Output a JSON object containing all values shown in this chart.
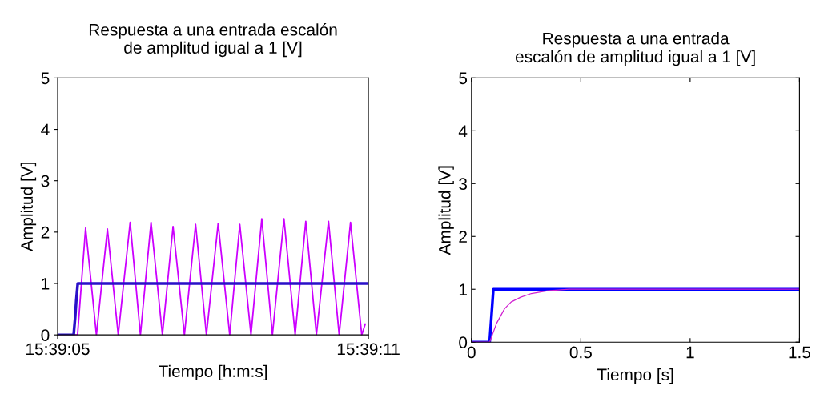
{
  "chart_data": [
    {
      "type": "line",
      "title": "Respuesta a una entrada escalón\nde amplitud igual a 1 [V]",
      "xlabel": "Tiempo [h:m:s]",
      "ylabel": "Amplitud [V]",
      "xlim": [
        15.651389,
        15.653056
      ],
      "xticks": [
        {
          "value": 15.651389,
          "label": "15:39:05"
        },
        {
          "value": 15.653056,
          "label": "15:39:11"
        }
      ],
      "ylim": [
        0,
        5
      ],
      "yticks": [
        0,
        1,
        2,
        3,
        4,
        5
      ],
      "grid": false,
      "legend": false,
      "series": [
        {
          "color": "#cc00ff",
          "x": [
            15.651389,
            15.651496,
            15.651539,
            15.651597,
            15.651656,
            15.651714,
            15.651778,
            15.651833,
            15.65189,
            15.651951,
            15.652008,
            15.652069,
            15.652129,
            15.652187,
            15.65225,
            15.652312,
            15.652366,
            15.652426,
            15.652484,
            15.652541,
            15.652603,
            15.652663,
            15.65272,
            15.652777,
            15.652842,
            15.652899,
            15.65296,
            15.65302,
            15.653039
          ],
          "values": [
            0,
            0,
            2.08,
            0,
            2.06,
            0,
            2.19,
            0,
            2.19,
            0,
            2.11,
            0,
            2.15,
            0,
            2.17,
            0,
            2.15,
            0,
            2.26,
            0,
            2.26,
            0,
            2.21,
            0,
            2.21,
            0,
            2.19,
            0,
            0.21
          ]
        },
        {
          "color": "#2a10c8",
          "x": [
            15.651389,
            15.651475,
            15.651483,
            15.651489,
            15.651497,
            15.653056
          ],
          "values": [
            0,
            0,
            0.34,
            0.67,
            1,
            1
          ]
        }
      ]
    },
    {
      "type": "line",
      "title": "Respuesta a una entrada\nescalón de amplitud igual a 1 [V]",
      "xlabel": "Tiempo [s]",
      "ylabel": "Amplitud [V]",
      "xlim": [
        0,
        1.5
      ],
      "xticks": [
        0,
        0.5,
        1,
        1.5
      ],
      "ylim": [
        0,
        5
      ],
      "yticks": [
        0,
        1,
        2,
        3,
        4,
        5
      ],
      "grid": false,
      "legend": false,
      "series": [
        {
          "color": "#0000ff",
          "x": [
            0,
            0.083,
            0.1,
            1.5
          ],
          "values": [
            0,
            0,
            1,
            1
          ]
        },
        {
          "color": "#d020d0",
          "x": [
            0,
            0.083,
            0.114,
            0.151,
            0.181,
            0.225,
            0.274,
            0.348,
            0.447,
            1.5
          ],
          "values": [
            0,
            0,
            0.35,
            0.63,
            0.76,
            0.85,
            0.92,
            0.97,
            1,
            1
          ]
        }
      ]
    }
  ]
}
